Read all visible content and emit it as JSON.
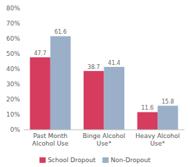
{
  "chart_data": {
    "type": "bar",
    "categories": [
      "Past Month\nAlcohol Use",
      "Binge Alcohol\nUse*",
      "Heavy Alcohol\nUse*"
    ],
    "series": [
      {
        "name": "School Dropout",
        "color": "#d63c5e",
        "values": [
          47.7,
          38.7,
          11.6
        ]
      },
      {
        "name": "Non-Dropout",
        "color": "#9bafc9",
        "values": [
          61.6,
          41.4,
          15.8
        ]
      }
    ],
    "ylim": [
      0,
      80
    ],
    "yticks": [
      {
        "value": 0,
        "label": "0%"
      },
      {
        "value": 10,
        "label": "10%"
      },
      {
        "value": 20,
        "label": "20%"
      },
      {
        "value": 30,
        "label": "30%"
      },
      {
        "value": 40,
        "label": "40%"
      },
      {
        "value": 50,
        "label": "50%"
      },
      {
        "value": 60,
        "label": "60%"
      },
      {
        "value": 70,
        "label": "70%"
      },
      {
        "value": 80,
        "label": "80%"
      }
    ],
    "grid": false,
    "data_labels": true,
    "legend": "bottom"
  }
}
